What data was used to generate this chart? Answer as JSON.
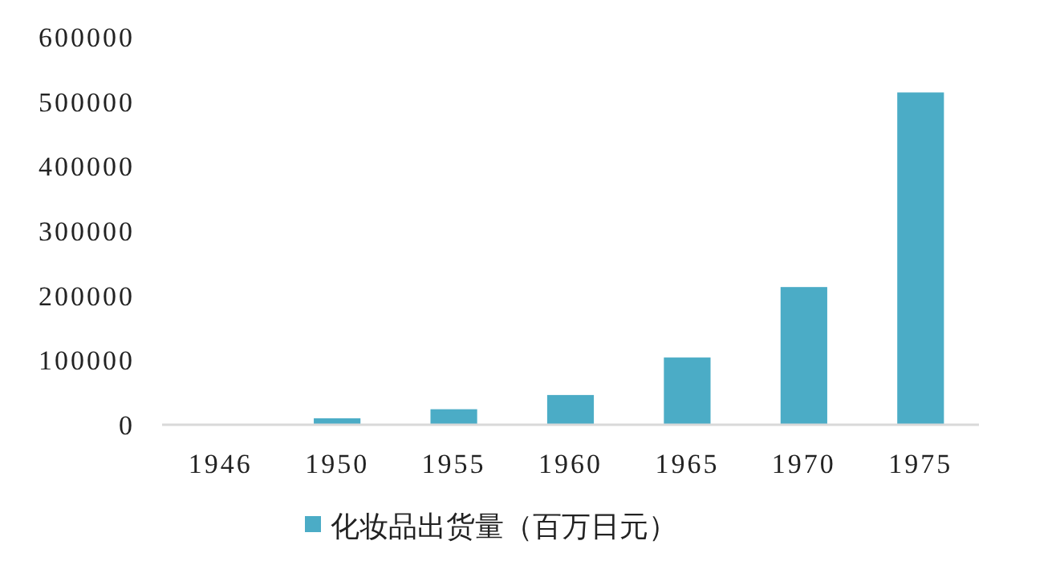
{
  "chart_data": {
    "type": "bar",
    "categories": [
      "1946",
      "1950",
      "1955",
      "1960",
      "1965",
      "1970",
      "1975"
    ],
    "series": [
      {
        "name": "化妆品出货量（百万日元）",
        "color": "#4bacc6",
        "values": [
          null,
          10000,
          24000,
          46000,
          104000,
          213000,
          514000
        ]
      }
    ],
    "ylim": [
      0,
      600000
    ],
    "yticks": [
      0,
      100000,
      200000,
      300000,
      400000,
      500000,
      600000
    ],
    "grid": false,
    "legend": "bottom"
  }
}
